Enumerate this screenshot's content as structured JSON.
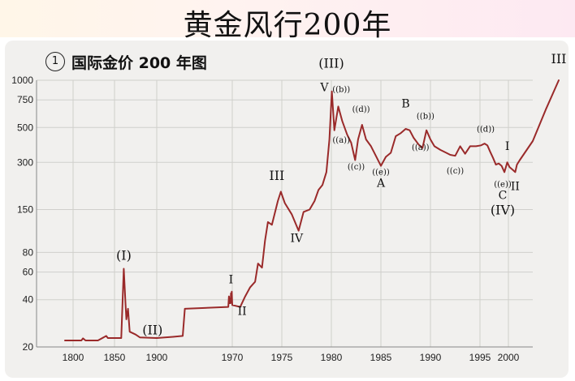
{
  "page_title": "黄金风行200年",
  "subtitle_number": "1",
  "subtitle": "国际金价 200 年图",
  "colors": {
    "line": "#9a2a2a",
    "grid": "#d0cfcb",
    "panel": "#f1f0ee"
  },
  "chart_data": {
    "type": "line",
    "title": "黄金风行200年",
    "subtitle": "国际金价 200 年图",
    "xlabel": "",
    "ylabel": "",
    "y_scale": "log",
    "ylim": [
      20,
      1000
    ],
    "y_ticks": [
      20,
      40,
      60,
      80,
      150,
      300,
      500,
      750,
      1000
    ],
    "x_tick_labels": [
      "1800",
      "1850",
      "1900",
      "1970",
      "1975",
      "1980",
      "1985",
      "1990",
      "1995",
      "2000"
    ],
    "grid": true,
    "x_axis_note": "non-linear time axis",
    "series": [
      {
        "points": [
          {
            "x": "1785",
            "y": 22
          },
          {
            "x": "1800",
            "y": 22
          },
          {
            "x": "1810",
            "y": 22
          },
          {
            "x": "1812",
            "y": 22.7
          },
          {
            "x": "1815",
            "y": 22
          },
          {
            "x": "1830",
            "y": 22
          },
          {
            "x": "1840",
            "y": 23.5
          },
          {
            "x": "1842",
            "y": 22.8
          },
          {
            "x": "1852",
            "y": 22.8
          },
          {
            "x": "1858",
            "y": 22.8
          },
          {
            "x": "1861",
            "y": 63
          },
          {
            "x": "1863",
            "y": 38
          },
          {
            "x": "1864",
            "y": 30
          },
          {
            "x": "1866",
            "y": 35
          },
          {
            "x": "1868",
            "y": 25
          },
          {
            "x": "1875",
            "y": 24
          },
          {
            "x": "1880",
            "y": 23
          },
          {
            "x": "1900",
            "y": 22.8
          },
          {
            "x": "1920",
            "y": 23.2
          },
          {
            "x": "1932",
            "y": 23.5
          },
          {
            "x": "1934",
            "y": 35
          },
          {
            "x": "1967",
            "y": 36
          },
          {
            "x": "1967.5",
            "y": 42
          },
          {
            "x": "1968",
            "y": 38
          },
          {
            "x": "1968.7",
            "y": 38
          },
          {
            "x": "1969",
            "y": 44
          },
          {
            "x": "1969.3",
            "y": 42
          },
          {
            "x": "1969.6",
            "y": 45
          },
          {
            "x": "1970",
            "y": 37
          },
          {
            "x": "1970.8",
            "y": 36
          },
          {
            "x": "1971.3",
            "y": 42
          },
          {
            "x": "1971.8",
            "y": 48
          },
          {
            "x": "1972.3",
            "y": 52
          },
          {
            "x": "1972.6",
            "y": 68
          },
          {
            "x": "1973",
            "y": 64
          },
          {
            "x": "1973.3",
            "y": 95
          },
          {
            "x": "1973.6",
            "y": 125
          },
          {
            "x": "1974",
            "y": 120
          },
          {
            "x": "1974.6",
            "y": 170
          },
          {
            "x": "1974.9",
            "y": 195
          },
          {
            "x": "1975.3",
            "y": 165
          },
          {
            "x": "1976",
            "y": 140
          },
          {
            "x": "1976.7",
            "y": 110
          },
          {
            "x": "1977.2",
            "y": 145
          },
          {
            "x": "1977.8",
            "y": 150
          },
          {
            "x": "1978.3",
            "y": 170
          },
          {
            "x": "1978.7",
            "y": 200
          },
          {
            "x": "1979.1",
            "y": 215
          },
          {
            "x": "1979.5",
            "y": 260
          },
          {
            "x": "1979.8",
            "y": 420
          },
          {
            "x": "1980.05",
            "y": 850
          },
          {
            "x": "1980.3",
            "y": 480
          },
          {
            "x": "1980.7",
            "y": 680
          },
          {
            "x": "1981.1",
            "y": 550
          },
          {
            "x": "1981.6",
            "y": 450
          },
          {
            "x": "1982",
            "y": 400
          },
          {
            "x": "1982.4",
            "y": 310
          },
          {
            "x": "1982.7",
            "y": 420
          },
          {
            "x": "1983.1",
            "y": 520
          },
          {
            "x": "1983.5",
            "y": 420
          },
          {
            "x": "1984",
            "y": 380
          },
          {
            "x": "1984.6",
            "y": 320
          },
          {
            "x": "1985",
            "y": 285
          },
          {
            "x": "1985.5",
            "y": 325
          },
          {
            "x": "1986",
            "y": 345
          },
          {
            "x": "1986.5",
            "y": 440
          },
          {
            "x": "1987",
            "y": 460
          },
          {
            "x": "1987.5",
            "y": 490
          },
          {
            "x": "1987.9",
            "y": 480
          },
          {
            "x": "1988.3",
            "y": 430
          },
          {
            "x": "1988.8",
            "y": 390
          },
          {
            "x": "1989.2",
            "y": 370
          },
          {
            "x": "1989.6",
            "y": 480
          },
          {
            "x": "1990",
            "y": 420
          },
          {
            "x": "1990.4",
            "y": 380
          },
          {
            "x": "1991",
            "y": 360
          },
          {
            "x": "1991.6",
            "y": 345
          },
          {
            "x": "1992",
            "y": 335
          },
          {
            "x": "1992.5",
            "y": 330
          },
          {
            "x": "1993",
            "y": 380
          },
          {
            "x": "1993.5",
            "y": 340
          },
          {
            "x": "1994",
            "y": 380
          },
          {
            "x": "1994.6",
            "y": 380
          },
          {
            "x": "1995.2",
            "y": 385
          },
          {
            "x": "1995.8",
            "y": 395
          },
          {
            "x": "1996.3",
            "y": 385
          },
          {
            "x": "1996.8",
            "y": 350
          },
          {
            "x": "1997.3",
            "y": 320
          },
          {
            "x": "1997.8",
            "y": 290
          },
          {
            "x": "1998.3",
            "y": 295
          },
          {
            "x": "1998.8",
            "y": 285
          },
          {
            "x": "1999.3",
            "y": 260
          },
          {
            "x": "1999.8",
            "y": 300
          },
          {
            "x": "2000.2",
            "y": 280
          },
          {
            "x": "2000.7",
            "y": 270
          },
          {
            "x": "2001.2",
            "y": 260
          },
          {
            "x": "2001.5",
            "y": 290
          },
          {
            "x": "2002",
            "y": 310
          },
          {
            "x": "2004",
            "y": 410
          },
          {
            "x": "2006",
            "y": 650
          },
          {
            "x": "2008",
            "y": 1000
          }
        ]
      }
    ],
    "annotations": [
      {
        "text": "(I)",
        "x": "1861",
        "y": 72
      },
      {
        "text": "(II)",
        "x": "1895",
        "y": 24
      },
      {
        "text": "I",
        "x": "1969",
        "y": 51
      },
      {
        "text": "II",
        "x": "1971",
        "y": 32
      },
      {
        "text": "III",
        "x": "1974.5",
        "y": 232
      },
      {
        "text": "IV",
        "x": "1976.5",
        "y": 93
      },
      {
        "text": "(III)",
        "x": "1980",
        "y": 1200
      },
      {
        "text": "V",
        "x": "1979.3",
        "y": 850
      },
      {
        "text": "((b))",
        "x": "1981",
        "y": 840
      },
      {
        "text": "((a))",
        "x": "1981",
        "y": 400
      },
      {
        "text": "((d))",
        "x": "1983",
        "y": 630
      },
      {
        "text": "((c))",
        "x": "1982.5",
        "y": 270
      },
      {
        "text": "((e))",
        "x": "1985",
        "y": 250
      },
      {
        "text": "A",
        "x": "1985",
        "y": 210
      },
      {
        "text": "B",
        "x": "1987.5",
        "y": 670
      },
      {
        "text": "((b))",
        "x": "1989.5",
        "y": 570
      },
      {
        "text": "((a))",
        "x": "1989",
        "y": 360
      },
      {
        "text": "((c))",
        "x": "1992.5",
        "y": 255
      },
      {
        "text": "((d))",
        "x": "1996",
        "y": 470
      },
      {
        "text": "I",
        "x": "1999.8",
        "y": 360
      },
      {
        "text": "((e))",
        "x": "1999",
        "y": 210
      },
      {
        "text": "II",
        "x": "2001.2",
        "y": 200
      },
      {
        "text": "C",
        "x": "1999",
        "y": 175
      },
      {
        "text": "(IV)",
        "x": "1999",
        "y": 140
      },
      {
        "text": "III",
        "x": "2008",
        "y": 1280
      }
    ]
  }
}
